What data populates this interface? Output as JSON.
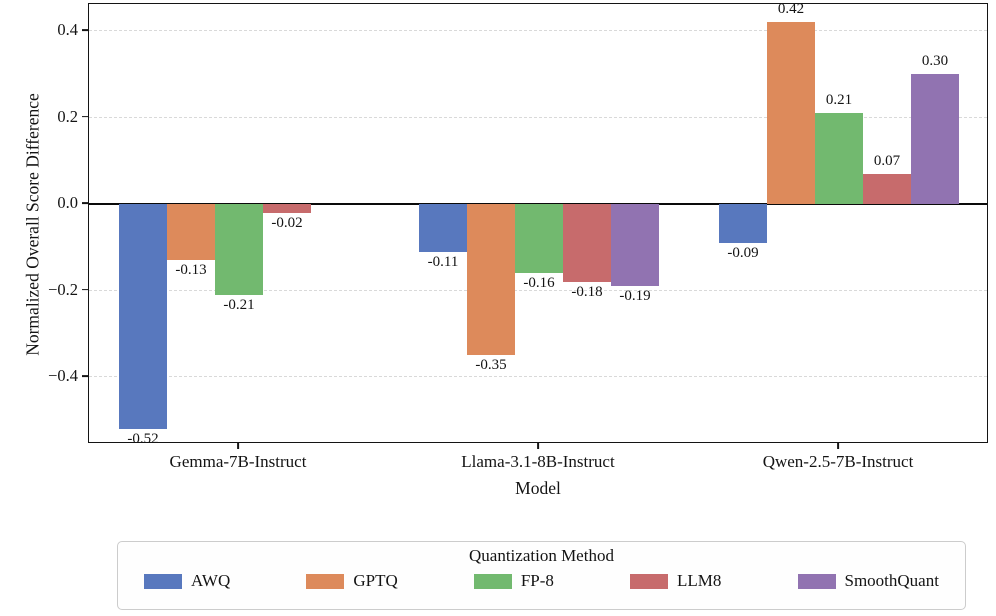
{
  "chart_data": {
    "type": "bar",
    "title": "",
    "xlabel": "Model",
    "ylabel": "Normalized Overall Score Difference",
    "categories": [
      "Gemma-7B-Instruct",
      "Llama-3.1-8B-Instruct",
      "Qwen-2.5-7B-Instruct"
    ],
    "series": [
      {
        "name": "AWQ",
        "color": "#5878be",
        "values": [
          -0.52,
          -0.11,
          -0.09
        ],
        "value_labels": [
          "-0.52",
          "-0.11",
          "-0.09"
        ]
      },
      {
        "name": "GPTQ",
        "color": "#dd8a5b",
        "values": [
          -0.13,
          -0.35,
          0.42
        ],
        "value_labels": [
          "-0.13",
          "-0.35",
          "0.42"
        ]
      },
      {
        "name": "FP-8",
        "color": "#72b96f",
        "values": [
          -0.21,
          -0.16,
          0.21
        ],
        "value_labels": [
          "-0.21",
          "-0.16",
          "0.21"
        ]
      },
      {
        "name": "LLM8",
        "color": "#c76b6c",
        "values": [
          -0.02,
          -0.18,
          0.07
        ],
        "value_labels": [
          "-0.02",
          "-0.18",
          "0.07"
        ]
      },
      {
        "name": "SmoothQuant",
        "color": "#9173b1",
        "values": [
          0.0,
          -0.19,
          0.3
        ],
        "value_labels": [
          null,
          "-0.19",
          "0.30"
        ]
      }
    ],
    "y_ticks": [
      0.4,
      0.2,
      0.0,
      -0.2,
      -0.4
    ],
    "y_tick_labels": [
      "0.4",
      "0.2",
      "0.0",
      "−0.2",
      "−0.4"
    ],
    "ylim": [
      -0.555,
      0.462
    ],
    "grid": "horizontal dashed",
    "zero_line": true,
    "legend": {
      "title": "Quantization Method",
      "position": "bottom"
    }
  }
}
